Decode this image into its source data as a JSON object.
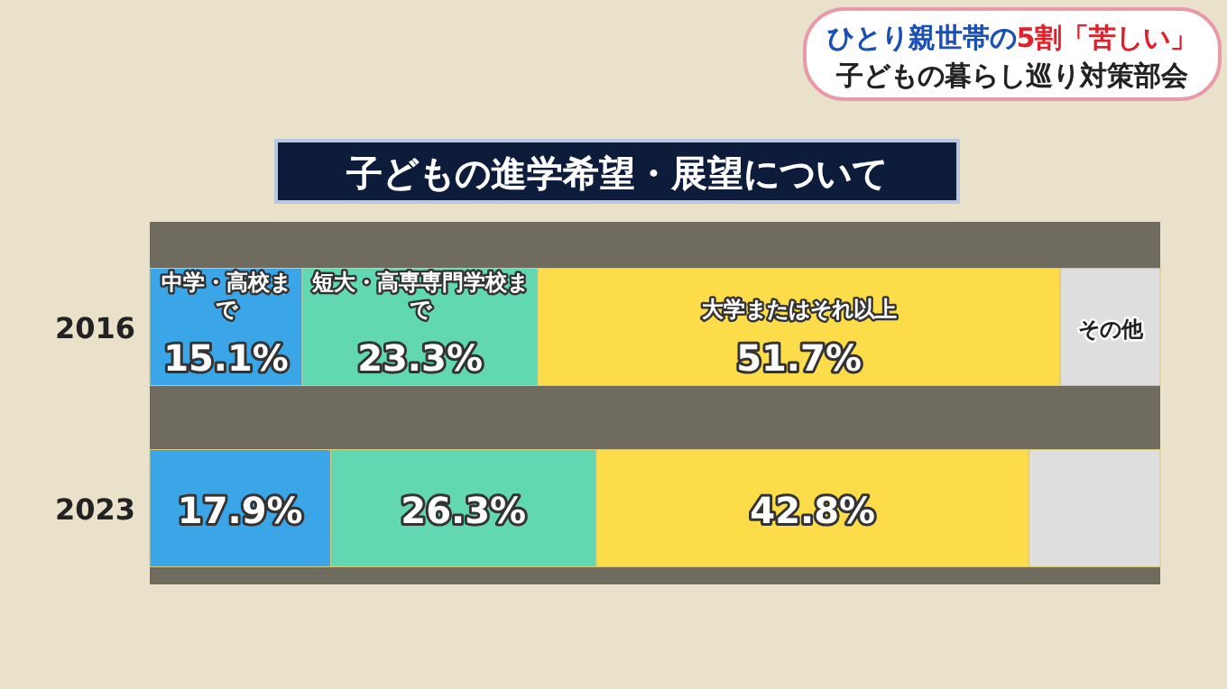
{
  "chart_data": {
    "type": "bar",
    "orientation": "horizontal",
    "stacked": true,
    "title": "子どもの進学希望・展望について",
    "annotations": [
      "ひとり親世帯の",
      "5割「苦しい」",
      "子どもの暮らし巡り対策部会"
    ],
    "categories": [
      "2016",
      "2023"
    ],
    "tick_labels": "y",
    "series": [
      {
        "name": "中学・高校まで",
        "color": "#3aa6e8",
        "values": [
          15.1,
          17.9
        ],
        "value_labels": [
          "15.1%",
          "17.9%"
        ]
      },
      {
        "name": "短大・高専専門学校まで",
        "color": "#62d8b2",
        "values": [
          23.3,
          26.3
        ],
        "value_labels": [
          "23.3%",
          "26.3%"
        ]
      },
      {
        "name": "大学またはそれ以上",
        "color": "#fddc4a",
        "values": [
          51.7,
          42.8
        ],
        "value_labels": [
          "51.7%",
          "42.8%"
        ]
      },
      {
        "name": "その他",
        "color": "#dedede",
        "values": [
          9.9,
          13.0
        ],
        "value_labels": [
          null,
          null
        ]
      }
    ]
  }
}
